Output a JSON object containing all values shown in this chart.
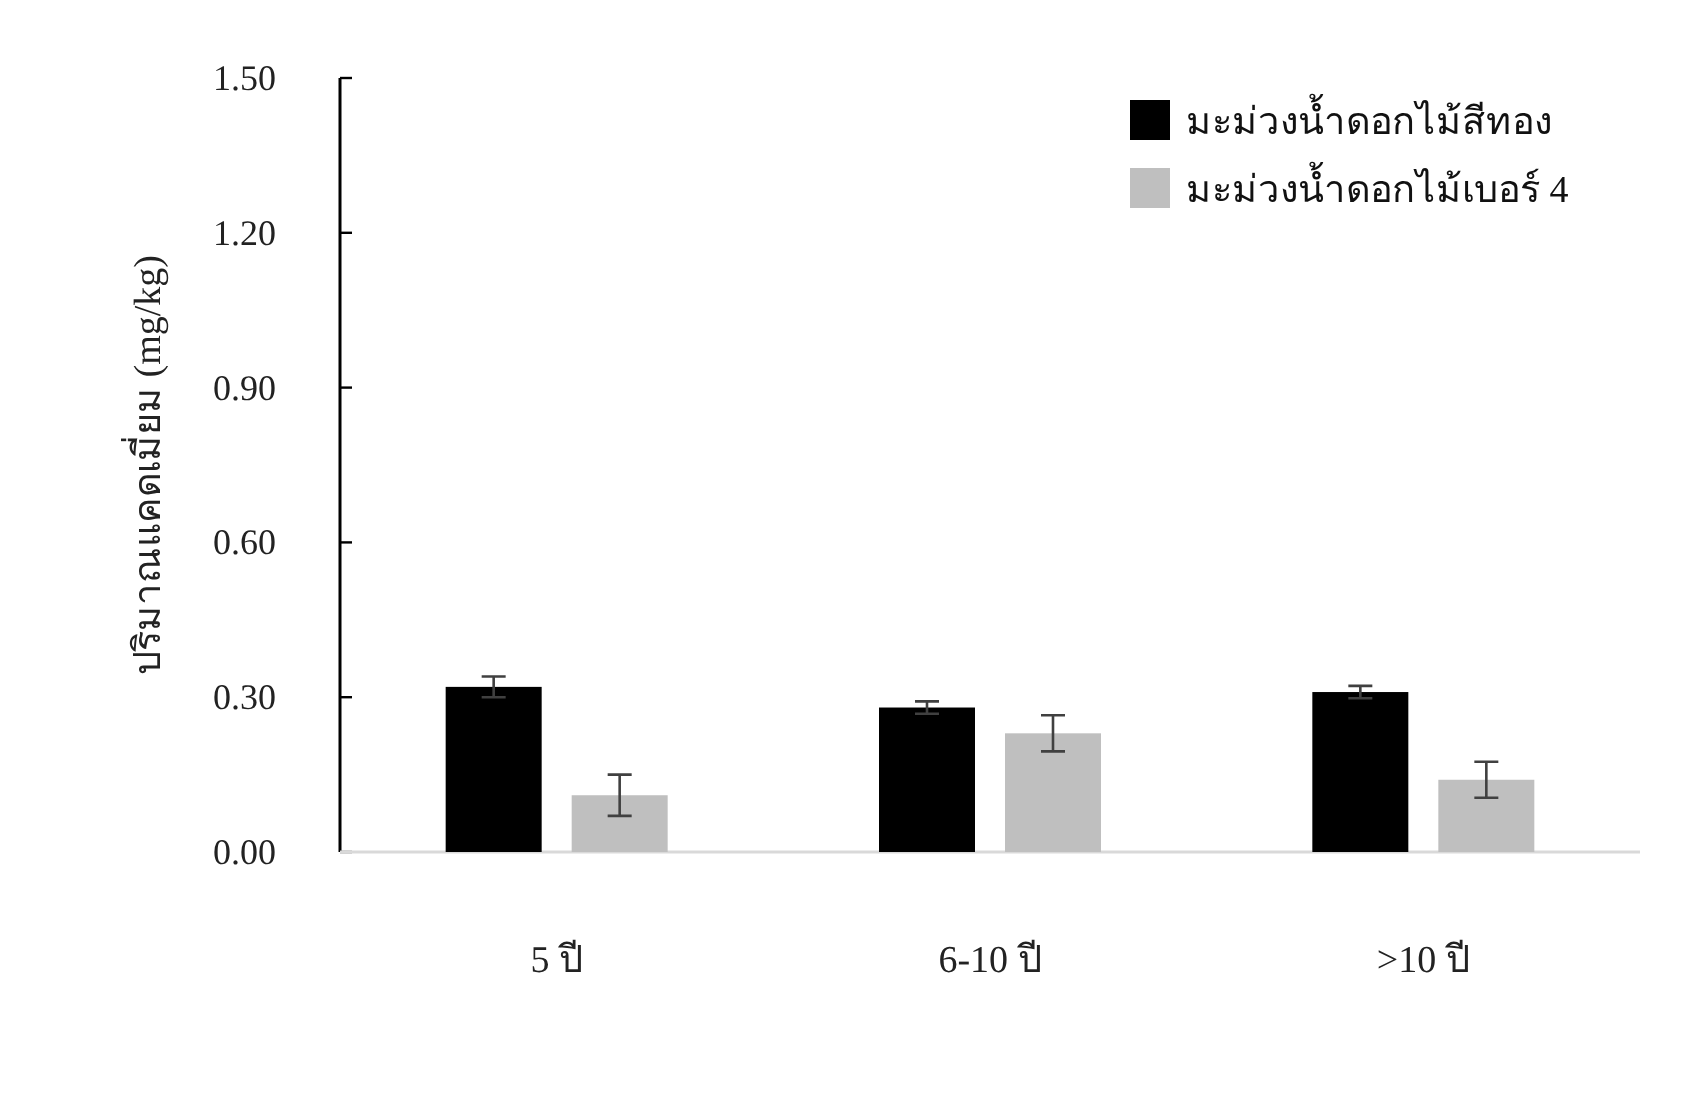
{
  "chart_data": {
    "type": "bar",
    "ylabel": "ปริมาณแคดเมี่ยม (mg/kg)",
    "categories": [
      "5 ปี",
      "6-10 ปี",
      ">10 ปี"
    ],
    "series": [
      {
        "name": "มะม่วงน้ำดอกไม้สีทอง",
        "color": "#000000",
        "values": [
          0.32,
          0.28,
          0.31
        ],
        "errors": [
          0.02,
          0.012,
          0.012
        ]
      },
      {
        "name": "มะม่วงน้ำดอกไม้เบอร์ 4",
        "color": "#bfbfbf",
        "values": [
          0.11,
          0.23,
          0.14
        ],
        "errors": [
          0.04,
          0.035,
          0.035
        ]
      }
    ],
    "ylim": [
      0,
      1.5
    ],
    "yticks": [
      {
        "value": 0,
        "label": "0.00"
      },
      {
        "value": 0.3,
        "label": "0.30"
      },
      {
        "value": 0.6,
        "label": "0.60"
      },
      {
        "value": 0.9,
        "label": "0.90"
      },
      {
        "value": 1.2,
        "label": "1.20"
      },
      {
        "value": 1.5,
        "label": "1.50"
      }
    ],
    "grid": false,
    "legend": "top right"
  }
}
